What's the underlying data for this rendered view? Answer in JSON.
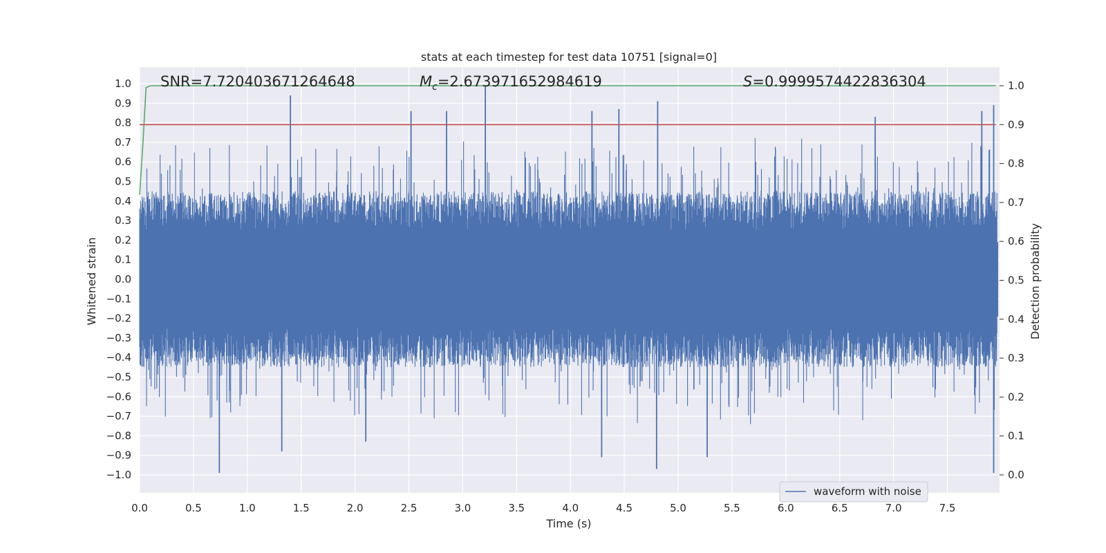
{
  "chart_data": {
    "type": "line",
    "title": "stats at each timestep for test data 10751 [signal=0]",
    "xlabel": "Time (s)",
    "ylabel": "Whitened strain",
    "y2label": "Detection probability",
    "xlim": [
      0.0,
      8.0
    ],
    "ylim": [
      -1.1,
      1.1
    ],
    "y2lim": [
      -0.05,
      1.05
    ],
    "x_ticks": [
      0.0,
      0.5,
      1.0,
      1.5,
      2.0,
      2.5,
      3.0,
      3.5,
      4.0,
      4.5,
      5.0,
      5.5,
      6.0,
      6.5,
      7.0,
      7.5
    ],
    "x_tick_labels": [
      "0.0",
      "0.5",
      "1.0",
      "1.5",
      "2.0",
      "2.5",
      "3.0",
      "3.5",
      "4.0",
      "4.5",
      "5.0",
      "5.5",
      "6.0",
      "6.5",
      "7.0",
      "7.5"
    ],
    "y_ticks": [
      1.0,
      0.9,
      0.8,
      0.7,
      0.6,
      0.5,
      0.4,
      0.3,
      0.2,
      0.1,
      0.0,
      -0.1,
      -0.2,
      -0.3,
      -0.4,
      -0.5,
      -0.6,
      -0.7,
      -0.8,
      -0.9,
      -1.0
    ],
    "y_tick_labels": [
      "1.0",
      "0.9",
      "0.8",
      "0.7",
      "0.6",
      "0.5",
      "0.4",
      "0.3",
      "0.2",
      "0.1",
      "0.0",
      "−0.1",
      "−0.2",
      "−0.3",
      "−0.4",
      "−0.5",
      "−0.6",
      "−0.7",
      "−0.8",
      "−0.9",
      "−1.0"
    ],
    "y2_ticks": [
      1.0,
      0.9,
      0.8,
      0.7,
      0.6,
      0.5,
      0.4,
      0.3,
      0.2,
      0.1,
      0.0
    ],
    "y2_tick_labels": [
      "1.0",
      "0.9",
      "0.8",
      "0.7",
      "0.6",
      "0.5",
      "0.4",
      "0.3",
      "0.2",
      "0.1",
      "0.0"
    ],
    "grid": true,
    "annotations": {
      "snr": "SNR=7.720403671264648",
      "mc_symbol": "M",
      "mc_subscript": "c",
      "mc_value": "=2.673971652984619",
      "s_symbol": "S",
      "s_value": "=0.9999574422836304"
    },
    "legend": {
      "label": "waveform with noise",
      "placement": "lower-right"
    },
    "colors": {
      "waveform": "#4c72b0",
      "probability": "#55a868",
      "threshold": "#c44e52",
      "background": "#eaeaf2",
      "grid": "#ffffff"
    },
    "waveform": {
      "name": "waveform with noise",
      "axis": "left",
      "peaks_positive": [
        {
          "x": 1.4,
          "y": 0.94
        },
        {
          "x": 2.52,
          "y": 0.86
        },
        {
          "x": 2.85,
          "y": 0.86
        },
        {
          "x": 3.21,
          "y": 0.99
        },
        {
          "x": 4.2,
          "y": 0.86
        },
        {
          "x": 4.45,
          "y": 0.87
        },
        {
          "x": 4.81,
          "y": 0.91
        },
        {
          "x": 6.83,
          "y": 0.83
        },
        {
          "x": 7.82,
          "y": 0.86
        },
        {
          "x": 7.93,
          "y": 0.89
        }
      ],
      "peaks_negative": [
        {
          "x": 0.74,
          "y": -0.99
        },
        {
          "x": 1.32,
          "y": -0.88
        },
        {
          "x": 2.1,
          "y": -0.83
        },
        {
          "x": 4.29,
          "y": -0.91
        },
        {
          "x": 4.8,
          "y": -0.97
        },
        {
          "x": 5.27,
          "y": -0.91
        },
        {
          "x": 7.93,
          "y": -0.99
        }
      ],
      "typical_envelope": [
        -0.45,
        0.45
      ]
    },
    "series": [
      {
        "name": "detection probability",
        "axis": "right",
        "x": [
          0.0,
          0.03,
          0.06,
          0.1,
          0.15,
          0.25,
          7.95
        ],
        "values": [
          0.72,
          0.85,
          0.995,
          1.0,
          1.0,
          1.0,
          1.0
        ]
      },
      {
        "name": "threshold",
        "axis": "right",
        "x": [
          0.0,
          7.95
        ],
        "values": [
          0.9,
          0.9
        ]
      }
    ]
  }
}
